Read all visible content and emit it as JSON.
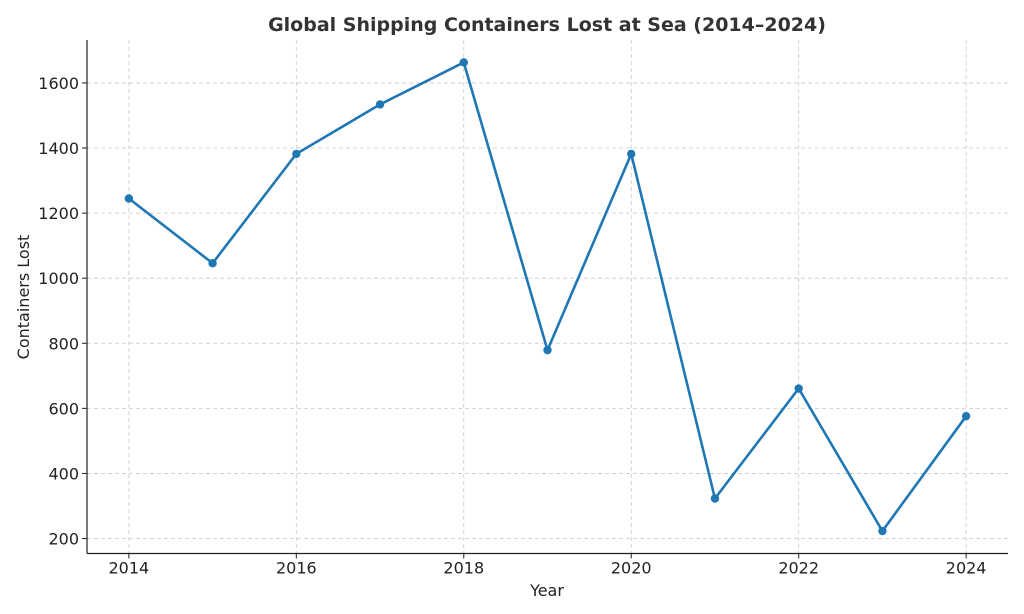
{
  "chart_data": {
    "type": "line",
    "title": "Global Shipping Containers Lost at Sea (2014–2024)",
    "xlabel": "Year",
    "ylabel": "Containers Lost",
    "x": [
      2014,
      2015,
      2016,
      2017,
      2018,
      2019,
      2020,
      2021,
      2022,
      2023,
      2024
    ],
    "series": [
      {
        "values": [
          1245,
          1046,
          1382,
          1534,
          1663,
          779,
          1382,
          323,
          661,
          223,
          576
        ],
        "color": "#1f77b4",
        "marker": "circle"
      }
    ],
    "xticks": [
      2014,
      2016,
      2018,
      2020,
      2022,
      2024
    ],
    "yticks": [
      200,
      400,
      600,
      800,
      1000,
      1200,
      1400,
      1600
    ],
    "xlim": [
      2013.5,
      2024.5
    ],
    "ylim": [
      154,
      1732
    ],
    "grid": true,
    "legend": "none"
  }
}
